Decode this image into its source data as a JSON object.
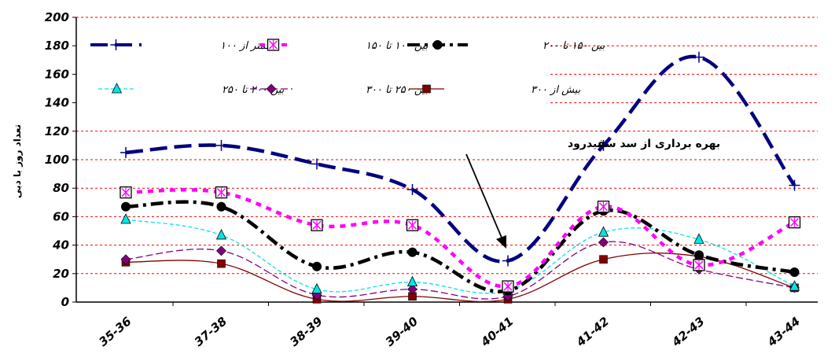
{
  "chart_data": {
    "type": "line",
    "ylabel": "تعداد روز با دبی",
    "ylim": [
      0,
      200
    ],
    "yticks": [
      0,
      20,
      40,
      60,
      80,
      100,
      120,
      140,
      160,
      180,
      200
    ],
    "grid": "dashed red horizontal lines",
    "legend_placement": "top",
    "categories": [
      "35-36",
      "37-38",
      "38-39",
      "39-40",
      "40-41",
      "41-42",
      "42-43",
      "43-44"
    ],
    "series": [
      {
        "name": "کمتر از ۱۰۰",
        "color": "#000080",
        "marker": "plus",
        "style": "long-dash",
        "values": [
          105,
          110,
          97,
          79,
          29,
          110,
          172,
          82
        ]
      },
      {
        "name": "بین ۱۰۰ تا ۱۵۰",
        "color": "#ff00ff",
        "marker": "square-x",
        "style": "dashed",
        "values": [
          77,
          77,
          54,
          54,
          11,
          67,
          26,
          56
        ]
      },
      {
        "name": "بین ۱۵۰ تا ۲۰۰",
        "color": "#000000",
        "marker": "circle",
        "style": "dash-dot",
        "values": [
          67,
          67,
          25,
          35,
          8,
          64,
          33,
          21
        ]
      },
      {
        "name": "بین ۲۰۰ تا ۲۵۰",
        "color": "#00e5e5",
        "marker": "triangle",
        "style": "thin-dashed",
        "values": [
          58,
          47,
          9,
          14,
          8,
          49,
          44,
          11
        ]
      },
      {
        "name": "بین ۲۵۰ تا ۳۰۰",
        "color": "#800080",
        "marker": "diamond",
        "style": "thin-dash",
        "values": [
          30,
          36,
          5,
          9,
          4,
          42,
          23,
          10
        ]
      },
      {
        "name": "بیش از ۳۰۰",
        "color": "#800000",
        "marker": "square",
        "style": "solid-thin",
        "values": [
          28,
          27,
          2,
          4,
          2,
          30,
          32,
          10
        ]
      }
    ],
    "annotation": "بهره برداری از سد سفیدرود"
  }
}
